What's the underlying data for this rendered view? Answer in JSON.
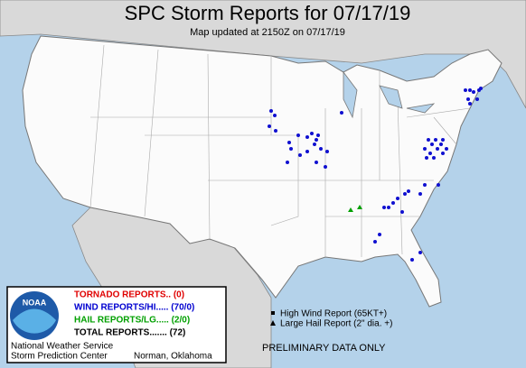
{
  "header": {
    "title": "SPC Storm Reports for 07/17/19",
    "subtitle": "Map updated at 2150Z on 07/17/19"
  },
  "legend": {
    "items": [
      {
        "text": "TORNADO REPORTS.. (0)",
        "color": "#e00000"
      },
      {
        "text": "WIND REPORTS/HI..... (70/0)",
        "color": "#0000d0"
      },
      {
        "text": "HAIL REPORTS/LG..... (2/0)",
        "color": "#00a000"
      },
      {
        "text": "TOTAL REPORTS....... (72)",
        "color": "#000000"
      }
    ],
    "logo": "NOAA"
  },
  "key": [
    "High Wind Report (65KT+)",
    "Large Hail Report (2\" dia. +)"
  ],
  "notice": "PRELIMINARY DATA ONLY",
  "footer": {
    "line1": "National Weather Service",
    "line2": "Storm Prediction Center",
    "location": "Norman, Oklahoma"
  }
}
